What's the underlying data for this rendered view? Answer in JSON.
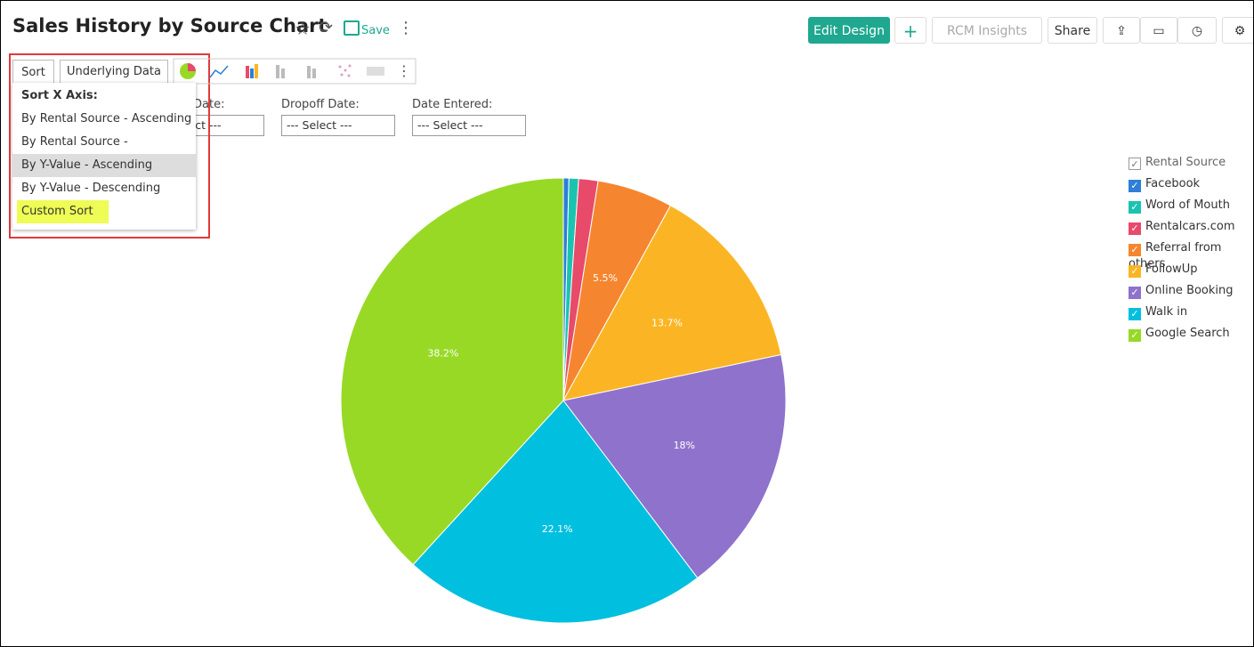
{
  "header": {
    "title": "Sales History by Source Chart",
    "save": "Save",
    "buttons": [
      "Edit Design",
      "RCM Insights",
      "Share"
    ]
  },
  "tabs": [
    "Sort",
    "Underlying Data"
  ],
  "sort_menu": {
    "heading": "Sort X Axis:",
    "options": [
      "By Rental Source - Ascending",
      "By Rental Source - Descending",
      "By Y-Value - Ascending",
      "By Y-Value - Descending",
      "Custom Sort"
    ]
  },
  "filters": [
    {
      "label": "Date:",
      "placeholder": "--- Select ---"
    },
    {
      "label": "Dropoff Date:",
      "placeholder": "--- Select ---"
    },
    {
      "label": "Date Entered:",
      "placeholder": "--- Select ---"
    }
  ],
  "chart_data": {
    "type": "pie",
    "legend_title": "Rental Source",
    "legend": "right",
    "categories": [
      "Facebook",
      "Word of Mouth",
      "Rentalcars.com",
      "Referral from others",
      "FollowUp",
      "Online Booking",
      "Walk in",
      "Google Search"
    ],
    "values": [
      0.4,
      0.7,
      1.4,
      5.5,
      13.7,
      18,
      22.1,
      38.2
    ],
    "value_labels": [
      null,
      null,
      null,
      "5.5%",
      "13.7%",
      "18%",
      "22.1%",
      "38.2%"
    ],
    "colors": [
      "#2d7fd8",
      "#19c3b0",
      "#e84a6a",
      "#f5862f",
      "#fbb524",
      "#8f72cc",
      "#00bfdf",
      "#98d926"
    ]
  }
}
